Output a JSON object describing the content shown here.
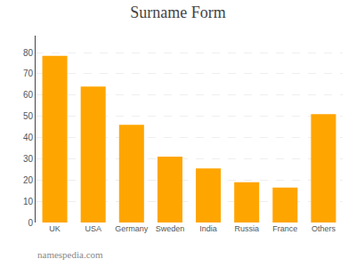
{
  "chart_data": {
    "type": "bar",
    "title": "Surname Form",
    "categories": [
      "UK",
      "USA",
      "Germany",
      "Sweden",
      "India",
      "Russia",
      "France",
      "Others"
    ],
    "values": [
      78.5,
      64.0,
      46.0,
      31.0,
      25.5,
      19.0,
      16.5,
      51.0
    ],
    "color": "#FFA500",
    "ylim": [
      0,
      88
    ],
    "yticks": [
      0,
      10,
      20,
      30,
      40,
      50,
      60,
      70,
      80
    ],
    "grid": true,
    "annotations": [
      "namespedia.com"
    ]
  }
}
